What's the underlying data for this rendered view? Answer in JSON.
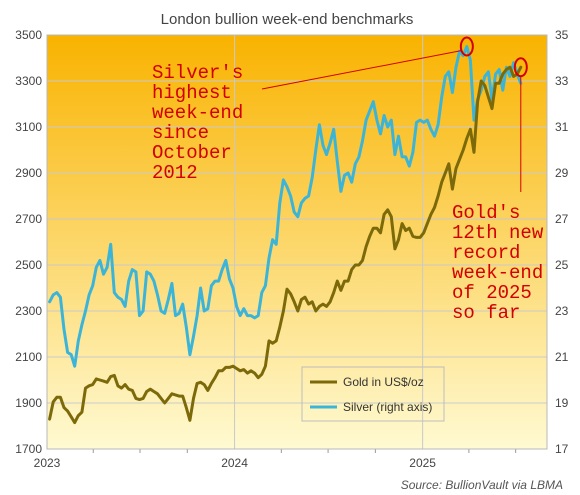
{
  "chart_data": {
    "type": "line",
    "title": "London bullion week-end benchmarks",
    "source": "Source: BullionVault via LBMA",
    "x_ticks": [
      "2023",
      "2024",
      "2025"
    ],
    "x_range": [
      "2023-01-01",
      "2025-08-31"
    ],
    "y_left": {
      "range": [
        1700,
        3500
      ],
      "ticks": [
        1700,
        1900,
        2100,
        2300,
        2500,
        2700,
        2900,
        3100,
        3300,
        3500
      ]
    },
    "y_right": {
      "range": [
        17,
        35
      ],
      "ticks": [
        17,
        19,
        21,
        23,
        25,
        27,
        29,
        31,
        33,
        35
      ]
    },
    "legend": {
      "gold": "Gold in US$/oz",
      "silver": "Silver (right axis)"
    },
    "colors": {
      "gold": "#7c6a0a",
      "silver": "#3cb4d8",
      "annotation": "#d40000",
      "bg_top": "#f9b300",
      "bg_bottom": "#fffad2"
    },
    "annotations": {
      "silver": [
        "Silver's",
        "highest",
        "week-end",
        "since",
        "October",
        "2012"
      ],
      "gold": [
        "Gold's",
        "12th new",
        "record",
        "week-end",
        "of 2025",
        "so far"
      ]
    },
    "series": [
      {
        "name": "Gold in US$/oz",
        "axis": "left",
        "x": [
          "2023-01-06",
          "2023-01-13",
          "2023-01-20",
          "2023-01-27",
          "2023-02-03",
          "2023-02-10",
          "2023-02-17",
          "2023-02-24",
          "2023-03-03",
          "2023-03-10",
          "2023-03-17",
          "2023-03-24",
          "2023-03-31",
          "2023-04-07",
          "2023-04-14",
          "2023-04-21",
          "2023-04-28",
          "2023-05-05",
          "2023-05-12",
          "2023-05-19",
          "2023-05-26",
          "2023-06-02",
          "2023-06-09",
          "2023-06-16",
          "2023-06-23",
          "2023-06-30",
          "2023-07-07",
          "2023-07-14",
          "2023-07-21",
          "2023-07-28",
          "2023-08-04",
          "2023-08-11",
          "2023-08-18",
          "2023-08-25",
          "2023-09-01",
          "2023-09-08",
          "2023-09-15",
          "2023-09-22",
          "2023-09-29",
          "2023-10-06",
          "2023-10-13",
          "2023-10-20",
          "2023-10-27",
          "2023-11-03",
          "2023-11-10",
          "2023-11-17",
          "2023-11-24",
          "2023-12-01",
          "2023-12-08",
          "2023-12-15",
          "2023-12-22",
          "2023-12-29",
          "2024-01-05",
          "2024-01-12",
          "2024-01-19",
          "2024-01-26",
          "2024-02-02",
          "2024-02-09",
          "2024-02-16",
          "2024-02-23",
          "2024-03-01",
          "2024-03-08",
          "2024-03-15",
          "2024-03-22",
          "2024-03-29",
          "2024-04-05",
          "2024-04-12",
          "2024-04-19",
          "2024-04-26",
          "2024-05-03",
          "2024-05-10",
          "2024-05-17",
          "2024-05-24",
          "2024-05-31",
          "2024-06-07",
          "2024-06-14",
          "2024-06-21",
          "2024-06-28",
          "2024-07-05",
          "2024-07-12",
          "2024-07-19",
          "2024-07-26",
          "2024-08-02",
          "2024-08-09",
          "2024-08-16",
          "2024-08-23",
          "2024-08-30",
          "2024-09-06",
          "2024-09-13",
          "2024-09-20",
          "2024-09-27",
          "2024-10-04",
          "2024-10-11",
          "2024-10-18",
          "2024-10-25",
          "2024-11-01",
          "2024-11-08",
          "2024-11-15",
          "2024-11-22",
          "2024-11-29",
          "2024-12-06",
          "2024-12-13",
          "2024-12-20",
          "2024-12-27",
          "2025-01-03",
          "2025-01-10",
          "2025-01-17",
          "2025-01-24",
          "2025-01-31",
          "2025-02-07",
          "2025-02-14",
          "2025-02-21",
          "2025-02-28",
          "2025-03-07",
          "2025-03-14",
          "2025-03-21",
          "2025-03-28",
          "2025-04-04",
          "2025-04-11",
          "2025-04-18",
          "2025-04-25",
          "2025-05-02",
          "2025-05-09",
          "2025-05-16",
          "2025-05-23",
          "2025-05-30",
          "2025-06-06",
          "2025-06-13",
          "2025-06-20",
          "2025-06-27",
          "2025-07-04",
          "2025-07-11"
        ],
        "values": [
          1830,
          1905,
          1925,
          1925,
          1880,
          1865,
          1840,
          1815,
          1845,
          1860,
          1965,
          1975,
          1980,
          2005,
          2000,
          1995,
          1990,
          2015,
          2020,
          1975,
          1965,
          1980,
          1960,
          1955,
          1920,
          1915,
          1920,
          1950,
          1960,
          1950,
          1940,
          1920,
          1900,
          1920,
          1940,
          1935,
          1930,
          1930,
          1880,
          1825,
          1920,
          1985,
          1990,
          1980,
          1955,
          1985,
          2010,
          2040,
          2040,
          2055,
          2055,
          2060,
          2050,
          2040,
          2045,
          2030,
          2040,
          2030,
          2010,
          2025,
          2060,
          2170,
          2160,
          2170,
          2230,
          2300,
          2395,
          2375,
          2340,
          2300,
          2350,
          2360,
          2330,
          2340,
          2300,
          2320,
          2330,
          2320,
          2340,
          2380,
          2430,
          2390,
          2430,
          2430,
          2480,
          2500,
          2500,
          2520,
          2580,
          2625,
          2660,
          2660,
          2640,
          2720,
          2740,
          2710,
          2570,
          2610,
          2680,
          2650,
          2660,
          2625,
          2620,
          2620,
          2640,
          2680,
          2720,
          2750,
          2800,
          2860,
          2900,
          2940,
          2830,
          2920,
          2960,
          3000,
          3050,
          3090,
          2990,
          3210,
          3300,
          3280,
          3230,
          3180,
          3290,
          3290,
          3330,
          3350,
          3360,
          3320,
          3330,
          3360
        ]
      },
      {
        "name": "Silver (right axis)",
        "axis": "right",
        "x": [
          "2023-01-06",
          "2023-01-13",
          "2023-01-20",
          "2023-01-27",
          "2023-02-03",
          "2023-02-10",
          "2023-02-17",
          "2023-02-24",
          "2023-03-03",
          "2023-03-10",
          "2023-03-17",
          "2023-03-24",
          "2023-03-31",
          "2023-04-07",
          "2023-04-14",
          "2023-04-21",
          "2023-04-28",
          "2023-05-05",
          "2023-05-12",
          "2023-05-19",
          "2023-05-26",
          "2023-06-02",
          "2023-06-09",
          "2023-06-16",
          "2023-06-23",
          "2023-06-30",
          "2023-07-07",
          "2023-07-14",
          "2023-07-21",
          "2023-07-28",
          "2023-08-04",
          "2023-08-11",
          "2023-08-18",
          "2023-08-25",
          "2023-09-01",
          "2023-09-08",
          "2023-09-15",
          "2023-09-22",
          "2023-09-29",
          "2023-10-06",
          "2023-10-13",
          "2023-10-20",
          "2023-10-27",
          "2023-11-03",
          "2023-11-10",
          "2023-11-17",
          "2023-11-24",
          "2023-12-01",
          "2023-12-08",
          "2023-12-15",
          "2023-12-22",
          "2023-12-29",
          "2024-01-05",
          "2024-01-12",
          "2024-01-19",
          "2024-01-26",
          "2024-02-02",
          "2024-02-09",
          "2024-02-16",
          "2024-02-23",
          "2024-03-01",
          "2024-03-08",
          "2024-03-15",
          "2024-03-22",
          "2024-03-29",
          "2024-04-05",
          "2024-04-12",
          "2024-04-19",
          "2024-04-26",
          "2024-05-03",
          "2024-05-10",
          "2024-05-17",
          "2024-05-24",
          "2024-05-31",
          "2024-06-07",
          "2024-06-14",
          "2024-06-21",
          "2024-06-28",
          "2024-07-05",
          "2024-07-12",
          "2024-07-19",
          "2024-07-26",
          "2024-08-02",
          "2024-08-09",
          "2024-08-16",
          "2024-08-23",
          "2024-08-30",
          "2024-09-06",
          "2024-09-13",
          "2024-09-20",
          "2024-09-27",
          "2024-10-04",
          "2024-10-11",
          "2024-10-18",
          "2024-10-25",
          "2024-11-01",
          "2024-11-08",
          "2024-11-15",
          "2024-11-22",
          "2024-11-29",
          "2024-12-06",
          "2024-12-13",
          "2024-12-20",
          "2024-12-27",
          "2025-01-03",
          "2025-01-10",
          "2025-01-17",
          "2025-01-24",
          "2025-01-31",
          "2025-02-07",
          "2025-02-14",
          "2025-02-21",
          "2025-02-28",
          "2025-03-07",
          "2025-03-14",
          "2025-03-21",
          "2025-03-28",
          "2025-04-04",
          "2025-04-11",
          "2025-04-18",
          "2025-04-25",
          "2025-05-02",
          "2025-05-09",
          "2025-05-16",
          "2025-05-23",
          "2025-05-30",
          "2025-06-06",
          "2025-06-13",
          "2025-06-20",
          "2025-06-27",
          "2025-07-04",
          "2025-07-11"
        ],
        "values": [
          23.4,
          23.7,
          23.8,
          23.6,
          22.2,
          21.2,
          21.1,
          20.6,
          21.7,
          22.4,
          23.0,
          23.7,
          24.1,
          24.9,
          25.2,
          24.6,
          24.9,
          25.9,
          23.8,
          23.6,
          23.5,
          23.2,
          24.3,
          24.8,
          24.7,
          22.8,
          23.0,
          24.7,
          24.6,
          24.3,
          23.7,
          23.0,
          22.9,
          23.5,
          24.2,
          22.8,
          22.9,
          23.3,
          22.3,
          21.1,
          21.9,
          22.8,
          24.0,
          23.0,
          23.1,
          24.1,
          24.3,
          24.3,
          24.8,
          25.2,
          24.4,
          24.0,
          23.2,
          22.8,
          23.1,
          22.8,
          22.8,
          22.7,
          22.8,
          23.8,
          24.1,
          25.3,
          26.1,
          25.9,
          27.7,
          28.7,
          28.4,
          28.0,
          27.3,
          27.1,
          27.7,
          27.9,
          28.0,
          28.8,
          30.0,
          31.1,
          30.2,
          29.8,
          30.3,
          30.9,
          29.5,
          28.2,
          28.9,
          29.0,
          28.6,
          29.4,
          29.7,
          30.4,
          31.3,
          31.7,
          32.1,
          31.3,
          30.7,
          31.5,
          31.0,
          31.3,
          29.8,
          30.6,
          29.7,
          29.7,
          29.3,
          29.9,
          31.2,
          31.3,
          31.2,
          31.3,
          30.9,
          30.6,
          31.1,
          32.3,
          33.2,
          33.4,
          32.5,
          33.6,
          34.3,
          34.1,
          34.5,
          33.9,
          31.3,
          32.2,
          32.6,
          33.2,
          33.4,
          32.2,
          33.3,
          33.5,
          32.6,
          33.6,
          33.2,
          33.8,
          33.3,
          32.9
        ]
      }
    ]
  }
}
